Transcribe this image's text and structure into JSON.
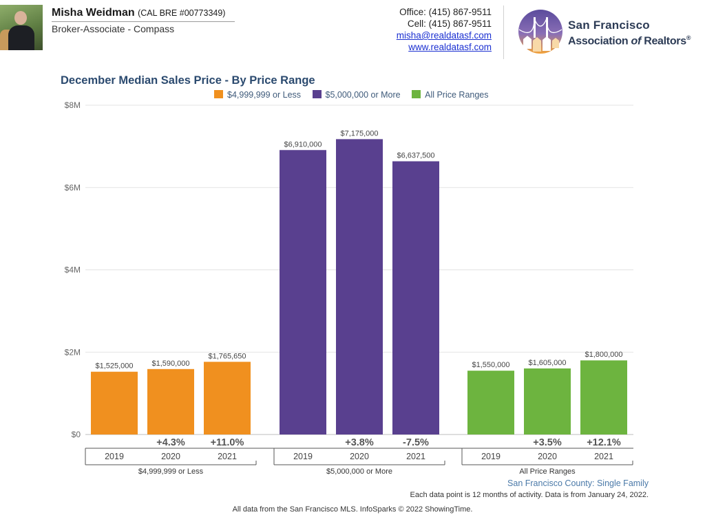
{
  "agent": {
    "name": "Misha Weidman",
    "license": "(CAL BRE #00773349)",
    "title": "Broker-Associate - Compass",
    "office": "Office: (415) 867-9511",
    "cell": "Cell: (415) 867-9511",
    "email": "misha@realdatasf.com",
    "website": "www.realdatasf.com"
  },
  "logo": {
    "line1": "San Francisco",
    "line2_pre": "Association ",
    "line2_of": "of",
    "line2_post": " Realtors",
    "superscript": "®"
  },
  "colors": {
    "orange": "#f0901f",
    "purple": "#59408f",
    "green": "#6db43f",
    "title": "#2b4a6f"
  },
  "chart_data": {
    "type": "bar",
    "title": "December Median Sales Price - By Price Range",
    "legend": [
      {
        "name": "$4,999,999 or Less",
        "color": "#f0901f"
      },
      {
        "name": "$5,000,000 or More",
        "color": "#59408f"
      },
      {
        "name": "All Price Ranges",
        "color": "#6db43f"
      }
    ],
    "legend_position": "top",
    "ylim": [
      0,
      8000000
    ],
    "yticks": [
      {
        "value": 0,
        "label": "$0"
      },
      {
        "value": 2000000,
        "label": "$2M"
      },
      {
        "value": 4000000,
        "label": "$4M"
      },
      {
        "value": 6000000,
        "label": "$6M"
      },
      {
        "value": 8000000,
        "label": "$8M"
      }
    ],
    "grid": true,
    "groups": [
      {
        "name": "$4,999,999 or Less",
        "color": "#f0901f",
        "bars": [
          {
            "year": "2019",
            "value": 1525000,
            "label": "$1,525,000",
            "change": ""
          },
          {
            "year": "2020",
            "value": 1590000,
            "label": "$1,590,000",
            "change": "+4.3%"
          },
          {
            "year": "2021",
            "value": 1765650,
            "label": "$1,765,650",
            "change": "+11.0%"
          }
        ]
      },
      {
        "name": "$5,000,000 or More",
        "color": "#59408f",
        "bars": [
          {
            "year": "2019",
            "value": 6910000,
            "label": "$6,910,000",
            "change": ""
          },
          {
            "year": "2020",
            "value": 7175000,
            "label": "$7,175,000",
            "change": "+3.8%"
          },
          {
            "year": "2021",
            "value": 6637500,
            "label": "$6,637,500",
            "change": "-7.5%"
          }
        ]
      },
      {
        "name": "All Price Ranges",
        "color": "#6db43f",
        "bars": [
          {
            "year": "2019",
            "value": 1550000,
            "label": "$1,550,000",
            "change": ""
          },
          {
            "year": "2020",
            "value": 1605000,
            "label": "$1,605,000",
            "change": "+3.5%"
          },
          {
            "year": "2021",
            "value": 1800000,
            "label": "$1,800,000",
            "change": "+12.1%"
          }
        ]
      }
    ]
  },
  "footnotes": {
    "county": "San Francisco County: Single Family",
    "activity": "Each data point is 12 months of activity. Data is from January 24, 2022.",
    "source": "All data from the San Francisco MLS. InfoSparks © 2022 ShowingTime."
  }
}
